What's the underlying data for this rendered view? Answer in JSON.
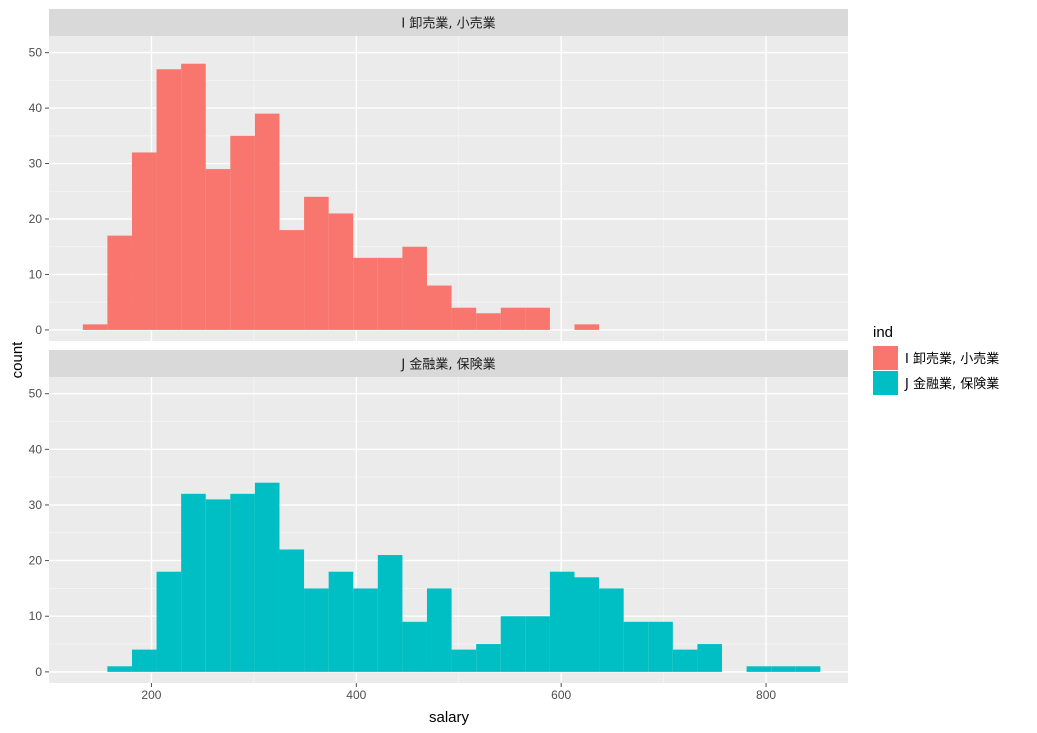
{
  "chart_data": {
    "type": "bar",
    "subtype": "faceted-histogram",
    "x": {
      "label": "salary",
      "lim": [
        100,
        880
      ],
      "ticks": [
        200,
        400,
        600,
        800
      ],
      "tick_labels": [
        "200",
        "400",
        "600",
        "800"
      ]
    },
    "y": {
      "label": "count",
      "lim": [
        -2,
        53
      ],
      "ticks": [
        0,
        10,
        20,
        30,
        40,
        50
      ],
      "tick_labels": [
        "0",
        "10",
        "20",
        "30",
        "40",
        "50"
      ]
    },
    "grid": true,
    "legend": {
      "title": "ind",
      "position": "right"
    },
    "series": [
      {
        "name": "I 卸売業, 小売業",
        "color": "#F8766D",
        "bins": [
          {
            "x0": 133,
            "x1": 157,
            "count": 1
          },
          {
            "x0": 157,
            "x1": 181,
            "count": 17
          },
          {
            "x0": 181,
            "x1": 205,
            "count": 32
          },
          {
            "x0": 205,
            "x1": 229,
            "count": 47
          },
          {
            "x0": 229,
            "x1": 253,
            "count": 48
          },
          {
            "x0": 253,
            "x1": 277,
            "count": 29
          },
          {
            "x0": 277,
            "x1": 301,
            "count": 35
          },
          {
            "x0": 301,
            "x1": 325,
            "count": 39
          },
          {
            "x0": 325,
            "x1": 349,
            "count": 18
          },
          {
            "x0": 349,
            "x1": 373,
            "count": 24
          },
          {
            "x0": 373,
            "x1": 397,
            "count": 21
          },
          {
            "x0": 397,
            "x1": 421,
            "count": 13
          },
          {
            "x0": 421,
            "x1": 445,
            "count": 13
          },
          {
            "x0": 445,
            "x1": 469,
            "count": 15
          },
          {
            "x0": 469,
            "x1": 493,
            "count": 8
          },
          {
            "x0": 493,
            "x1": 517,
            "count": 4
          },
          {
            "x0": 517,
            "x1": 541,
            "count": 3
          },
          {
            "x0": 541,
            "x1": 565,
            "count": 4
          },
          {
            "x0": 565,
            "x1": 589,
            "count": 4
          },
          {
            "x0": 589,
            "x1": 613,
            "count": 0
          },
          {
            "x0": 613,
            "x1": 637,
            "count": 1
          }
        ]
      },
      {
        "name": "J 金融業, 保険業",
        "color": "#00BFC4",
        "bins": [
          {
            "x0": 157,
            "x1": 181,
            "count": 1
          },
          {
            "x0": 181,
            "x1": 205,
            "count": 4
          },
          {
            "x0": 205,
            "x1": 229,
            "count": 18
          },
          {
            "x0": 229,
            "x1": 253,
            "count": 32
          },
          {
            "x0": 253,
            "x1": 277,
            "count": 31
          },
          {
            "x0": 277,
            "x1": 301,
            "count": 32
          },
          {
            "x0": 301,
            "x1": 325,
            "count": 34
          },
          {
            "x0": 325,
            "x1": 349,
            "count": 22
          },
          {
            "x0": 349,
            "x1": 373,
            "count": 15
          },
          {
            "x0": 373,
            "x1": 397,
            "count": 18
          },
          {
            "x0": 397,
            "x1": 421,
            "count": 15
          },
          {
            "x0": 421,
            "x1": 445,
            "count": 21
          },
          {
            "x0": 445,
            "x1": 469,
            "count": 9
          },
          {
            "x0": 469,
            "x1": 493,
            "count": 15
          },
          {
            "x0": 493,
            "x1": 517,
            "count": 4
          },
          {
            "x0": 517,
            "x1": 541,
            "count": 5
          },
          {
            "x0": 541,
            "x1": 565,
            "count": 10
          },
          {
            "x0": 565,
            "x1": 589,
            "count": 10
          },
          {
            "x0": 589,
            "x1": 613,
            "count": 18
          },
          {
            "x0": 613,
            "x1": 637,
            "count": 17
          },
          {
            "x0": 637,
            "x1": 661,
            "count": 15
          },
          {
            "x0": 661,
            "x1": 685,
            "count": 9
          },
          {
            "x0": 685,
            "x1": 709,
            "count": 9
          },
          {
            "x0": 709,
            "x1": 733,
            "count": 4
          },
          {
            "x0": 733,
            "x1": 757,
            "count": 5
          },
          {
            "x0": 757,
            "x1": 781,
            "count": 0
          },
          {
            "x0": 781,
            "x1": 805,
            "count": 1
          },
          {
            "x0": 805,
            "x1": 829,
            "count": 1
          },
          {
            "x0": 829,
            "x1": 853,
            "count": 1
          }
        ]
      }
    ],
    "facets": [
      {
        "strip_label": "I 卸売業, 小売業",
        "series_index": 0
      },
      {
        "strip_label": "J 金融業, 保険業",
        "series_index": 1
      }
    ],
    "colors": {
      "panel_background": "#EBEBEB",
      "strip_background": "#D9D9D9",
      "grid_major": "#FFFFFF",
      "tick_color": "#4d4d4d"
    }
  }
}
